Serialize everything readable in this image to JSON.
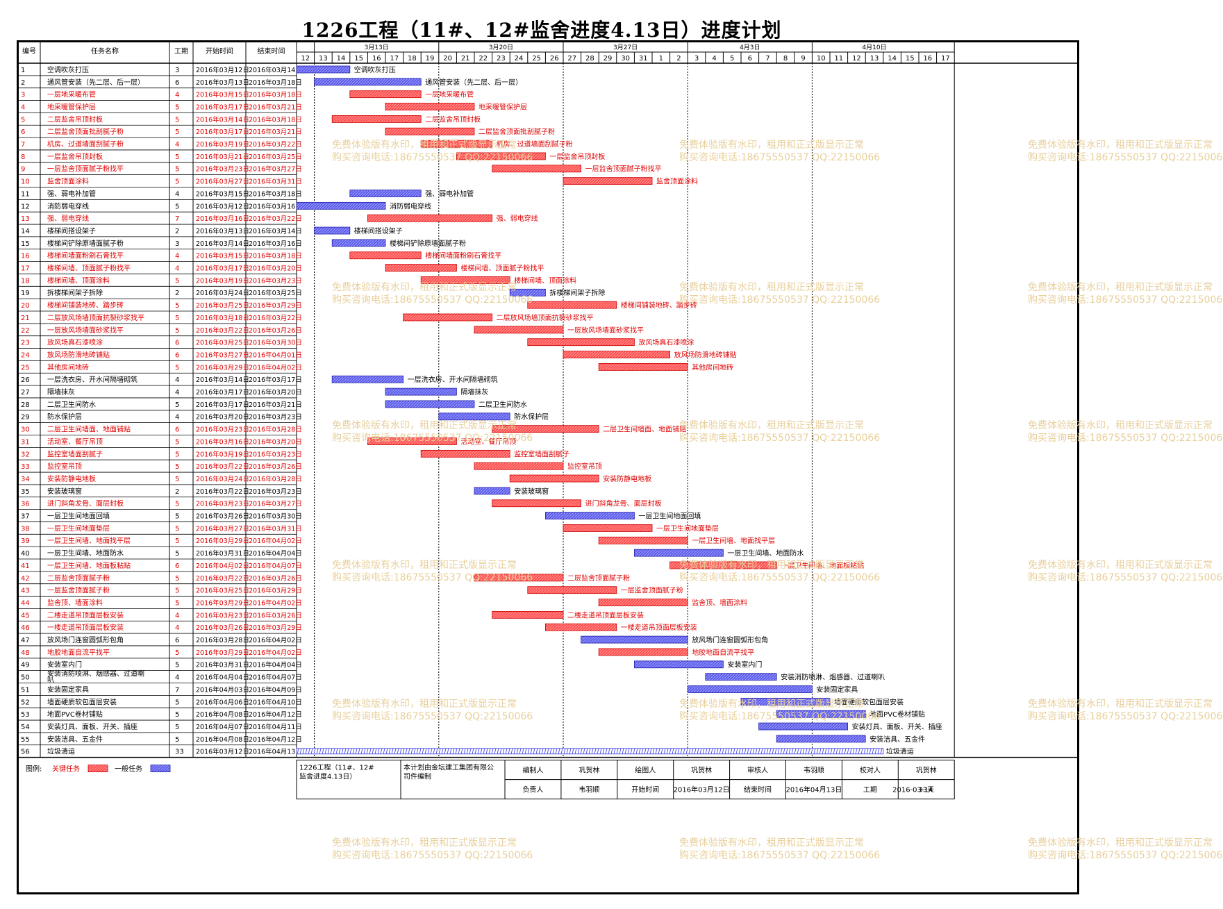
{
  "title": "1226工程（11#、12#监舍进度4.13日）进度计划",
  "headers": {
    "id": "编号",
    "name": "任务名称",
    "dur": "工期",
    "start": "开始时间",
    "end": "结束时间"
  },
  "weeks": [
    {
      "label": "3月13日",
      "first": 13,
      "last": 19
    },
    {
      "label": "3月20日",
      "first": 20,
      "last": 26
    },
    {
      "label": "3月27日",
      "first": 27,
      "last": 33
    },
    {
      "label": "4月3日",
      "first": 34,
      "last": 40
    },
    {
      "label": "4月10日",
      "first": 41,
      "last": 47
    }
  ],
  "days": [
    "12",
    "13",
    "14",
    "15",
    "16",
    "17",
    "18",
    "19",
    "20",
    "21",
    "22",
    "23",
    "24",
    "25",
    "26",
    "27",
    "28",
    "29",
    "30",
    "31",
    "1",
    "2",
    "3",
    "4",
    "5",
    "6",
    "7",
    "8",
    "9",
    "10",
    "11",
    "12",
    "13",
    "14",
    "15",
    "16",
    "17"
  ],
  "watermark": {
    "line1": "免费体验版有水印，租用和正式版显示正常",
    "line2": "购买咨询电话:18675550537 QQ:22150066"
  },
  "colors": {
    "critical": "#ff4d4d",
    "general": "#5a5aee",
    "critical_text": "#e00000",
    "grid": "#000000"
  },
  "chart_data": {
    "type": "gantt",
    "x_axis_start": "2016-03-12",
    "tasks": [
      {
        "id": "1",
        "name": "空调吹灰打压",
        "dur": "3",
        "start": "2016年03月12日",
        "end": "2016年03月14日",
        "s": 12,
        "e": 14,
        "critical": false
      },
      {
        "id": "2",
        "name": "通风管安装（先二层、后一层）",
        "dur": "6",
        "start": "2016年03月13日",
        "end": "2016年03月18日",
        "s": 13,
        "e": 18,
        "critical": false
      },
      {
        "id": "3",
        "name": "一层地采暖布管",
        "dur": "4",
        "start": "2016年03月15日",
        "end": "2016年03月18日",
        "s": 15,
        "e": 18,
        "critical": true
      },
      {
        "id": "4",
        "name": "地采暖管保护层",
        "dur": "5",
        "start": "2016年03月17日",
        "end": "2016年03月21日",
        "s": 17,
        "e": 21,
        "critical": true
      },
      {
        "id": "5",
        "name": "二层监舍吊顶封板",
        "dur": "5",
        "start": "2016年03月14日",
        "end": "2016年03月18日",
        "s": 14,
        "e": 18,
        "critical": true
      },
      {
        "id": "6",
        "name": "二层监舍顶面批刮腻子粉",
        "dur": "5",
        "start": "2016年03月17日",
        "end": "2016年03月21日",
        "s": 17,
        "e": 21,
        "critical": true
      },
      {
        "id": "7",
        "name": "机房、过道墙面刮腻子粉",
        "dur": "4",
        "start": "2016年03月19日",
        "end": "2016年03月22日",
        "s": 19,
        "e": 22,
        "critical": true
      },
      {
        "id": "8",
        "name": "一层监舍吊顶封板",
        "dur": "5",
        "start": "2016年03月21日",
        "end": "2016年03月25日",
        "s": 21,
        "e": 25,
        "critical": true
      },
      {
        "id": "9",
        "name": "一层监舍顶面腻子粉找平",
        "dur": "5",
        "start": "2016年03月23日",
        "end": "2016年03月27日",
        "s": 23,
        "e": 27,
        "critical": true
      },
      {
        "id": "10",
        "name": "监舍顶面涂料",
        "dur": "5",
        "start": "2016年03月27日",
        "end": "2016年03月31日",
        "s": 27,
        "e": 31,
        "critical": true
      },
      {
        "id": "11",
        "name": "强、弱电补加管",
        "dur": "4",
        "start": "2016年03月15日",
        "end": "2016年03月18日",
        "s": 15,
        "e": 18,
        "critical": false
      },
      {
        "id": "12",
        "name": "消防弱电穿线",
        "dur": "5",
        "start": "2016年03月12日",
        "end": "2016年03月16日",
        "s": 12,
        "e": 16,
        "critical": false
      },
      {
        "id": "13",
        "name": "强、弱电穿线",
        "dur": "7",
        "start": "2016年03月16日",
        "end": "2016年03月22日",
        "s": 16,
        "e": 22,
        "critical": true
      },
      {
        "id": "14",
        "name": "楼梯间搭设架子",
        "dur": "2",
        "start": "2016年03月13日",
        "end": "2016年03月14日",
        "s": 13,
        "e": 14,
        "critical": false
      },
      {
        "id": "15",
        "name": "楼梯间铲除原墙面腻子粉",
        "dur": "3",
        "start": "2016年03月14日",
        "end": "2016年03月16日",
        "s": 14,
        "e": 16,
        "critical": false
      },
      {
        "id": "16",
        "name": "楼梯间墙面粉刷石膏找平",
        "dur": "4",
        "start": "2016年03月15日",
        "end": "2016年03月18日",
        "s": 15,
        "e": 18,
        "critical": true
      },
      {
        "id": "17",
        "name": "楼梯间墙、顶面腻子粉找平",
        "dur": "4",
        "start": "2016年03月17日",
        "end": "2016年03月20日",
        "s": 17,
        "e": 20,
        "critical": true
      },
      {
        "id": "18",
        "name": "楼梯间墙、顶面涂料",
        "dur": "5",
        "start": "2016年03月19日",
        "end": "2016年03月23日",
        "s": 19,
        "e": 23,
        "critical": true
      },
      {
        "id": "19",
        "name": "拆楼梯间架子拆除",
        "dur": "2",
        "start": "2016年03月24日",
        "end": "2016年03月25日",
        "s": 24,
        "e": 25,
        "critical": false
      },
      {
        "id": "20",
        "name": "楼梯间铺装地砖、踏步砖",
        "dur": "5",
        "start": "2016年03月25日",
        "end": "2016年03月29日",
        "s": 25,
        "e": 29,
        "critical": true
      },
      {
        "id": "21",
        "name": "二层放风场墙顶面抗裂砂浆找平",
        "dur": "5",
        "start": "2016年03月18日",
        "end": "2016年03月22日",
        "s": 18,
        "e": 22,
        "critical": true
      },
      {
        "id": "22",
        "name": "一层放风场墙面砂浆找平",
        "dur": "5",
        "start": "2016年03月22日",
        "end": "2016年03月26日",
        "s": 22,
        "e": 26,
        "critical": true
      },
      {
        "id": "23",
        "name": "放风场真石漆喷涂",
        "dur": "6",
        "start": "2016年03月25日",
        "end": "2016年03月30日",
        "s": 25,
        "e": 30,
        "critical": true
      },
      {
        "id": "24",
        "name": "放风场防滑地砖铺贴",
        "dur": "6",
        "start": "2016年03月27日",
        "end": "2016年04月01日",
        "s": 27,
        "e": 32,
        "critical": true
      },
      {
        "id": "25",
        "name": "其他房间地砖",
        "dur": "5",
        "start": "2016年03月29日",
        "end": "2016年04月02日",
        "s": 29,
        "e": 33,
        "critical": true
      },
      {
        "id": "26",
        "name": "一层洗衣房、开水间隔墙砌筑",
        "dur": "4",
        "start": "2016年03月14日",
        "end": "2016年03月17日",
        "s": 14,
        "e": 17,
        "critical": false
      },
      {
        "id": "27",
        "name": "隔墙抹灰",
        "dur": "4",
        "start": "2016年03月17日",
        "end": "2016年03月20日",
        "s": 17,
        "e": 20,
        "critical": false
      },
      {
        "id": "28",
        "name": "二层卫生间防水",
        "dur": "5",
        "start": "2016年03月17日",
        "end": "2016年03月21日",
        "s": 17,
        "e": 21,
        "critical": false
      },
      {
        "id": "29",
        "name": "防水保护层",
        "dur": "4",
        "start": "2016年03月20日",
        "end": "2016年03月23日",
        "s": 20,
        "e": 23,
        "critical": false
      },
      {
        "id": "30",
        "name": "二层卫生间墙面、地面铺贴",
        "dur": "6",
        "start": "2016年03月23日",
        "end": "2016年03月28日",
        "s": 23,
        "e": 28,
        "critical": true
      },
      {
        "id": "31",
        "name": "活动室、餐厅吊顶",
        "dur": "5",
        "start": "2016年03月16日",
        "end": "2016年03月20日",
        "s": 16,
        "e": 20,
        "critical": true
      },
      {
        "id": "32",
        "name": "监控室墙面刮腻子",
        "dur": "5",
        "start": "2016年03月19日",
        "end": "2016年03月23日",
        "s": 19,
        "e": 23,
        "critical": true
      },
      {
        "id": "33",
        "name": "监控室吊顶",
        "dur": "5",
        "start": "2016年03月22日",
        "end": "2016年03月26日",
        "s": 22,
        "e": 26,
        "critical": true
      },
      {
        "id": "34",
        "name": "安装防静电地板",
        "dur": "5",
        "start": "2016年03月24日",
        "end": "2016年03月28日",
        "s": 24,
        "e": 28,
        "critical": true
      },
      {
        "id": "35",
        "name": "安装玻璃窗",
        "dur": "2",
        "start": "2016年03月22日",
        "end": "2016年03月23日",
        "s": 22,
        "e": 23,
        "critical": false
      },
      {
        "id": "36",
        "name": "进门斜角龙骨、面层封板",
        "dur": "5",
        "start": "2016年03月23日",
        "end": "2016年03月27日",
        "s": 23,
        "e": 27,
        "critical": true
      },
      {
        "id": "37",
        "name": "一层卫生间地面回填",
        "dur": "5",
        "start": "2016年03月26日",
        "end": "2016年03月30日",
        "s": 26,
        "e": 30,
        "critical": false
      },
      {
        "id": "38",
        "name": "一层卫生间地面垫层",
        "dur": "5",
        "start": "2016年03月27日",
        "end": "2016年03月31日",
        "s": 27,
        "e": 31,
        "critical": true
      },
      {
        "id": "39",
        "name": "一层卫生间墙、地面找平层",
        "dur": "5",
        "start": "2016年03月29日",
        "end": "2016年04月02日",
        "s": 29,
        "e": 33,
        "critical": true
      },
      {
        "id": "40",
        "name": "一层卫生间墙、地面防水",
        "dur": "5",
        "start": "2016年03月31日",
        "end": "2016年04月04日",
        "s": 31,
        "e": 35,
        "critical": false
      },
      {
        "id": "41",
        "name": "一层卫生间墙、地面板粘贴",
        "dur": "6",
        "start": "2016年04月02日",
        "end": "2016年04月07日",
        "s": 33,
        "e": 38,
        "critical": true
      },
      {
        "id": "42",
        "name": "二层监舍顶面腻子粉",
        "dur": "5",
        "start": "2016年03月22日",
        "end": "2016年03月26日",
        "s": 22,
        "e": 26,
        "critical": true
      },
      {
        "id": "43",
        "name": "一层监舍顶面腻子粉",
        "dur": "5",
        "start": "2016年03月25日",
        "end": "2016年03月29日",
        "s": 25,
        "e": 29,
        "critical": true
      },
      {
        "id": "44",
        "name": "监舍顶、墙面涂料",
        "dur": "5",
        "start": "2016年03月29日",
        "end": "2016年04月02日",
        "s": 29,
        "e": 33,
        "critical": true
      },
      {
        "id": "45",
        "name": "二楼走道吊顶面层板安装",
        "dur": "4",
        "start": "2016年03月23日",
        "end": "2016年03月26日",
        "s": 23,
        "e": 26,
        "critical": true
      },
      {
        "id": "46",
        "name": "一楼走道吊顶面层板安装",
        "dur": "4",
        "start": "2016年03月26日",
        "end": "2016年03月29日",
        "s": 26,
        "e": 29,
        "critical": true
      },
      {
        "id": "47",
        "name": "放风场门连窗圆弧形包角",
        "dur": "6",
        "start": "2016年03月28日",
        "end": "2016年04月02日",
        "s": 28,
        "e": 33,
        "critical": false
      },
      {
        "id": "48",
        "name": "地胶地面自流平找平",
        "dur": "5",
        "start": "2016年03月29日",
        "end": "2016年04月02日",
        "s": 29,
        "e": 33,
        "critical": true
      },
      {
        "id": "49",
        "name": "安装室内门",
        "dur": "5",
        "start": "2016年03月31日",
        "end": "2016年04月04日",
        "s": 31,
        "e": 35,
        "critical": false
      },
      {
        "id": "50",
        "name": "安装消防喷淋、烟感器、过道喇叭",
        "dur": "4",
        "start": "2016年04月04日",
        "end": "2016年04月07日",
        "s": 35,
        "e": 38,
        "critical": false
      },
      {
        "id": "51",
        "name": "安装固定家具",
        "dur": "7",
        "start": "2016年04月03日",
        "end": "2016年04月09日",
        "s": 34,
        "e": 40,
        "critical": false
      },
      {
        "id": "52",
        "name": "墙面硬质软包面层安装",
        "dur": "5",
        "start": "2016年04月06日",
        "end": "2016年04月10日",
        "s": 37,
        "e": 41,
        "critical": false
      },
      {
        "id": "53",
        "name": "地面PVC卷材铺贴",
        "dur": "5",
        "start": "2016年04月08日",
        "end": "2016年04月12日",
        "s": 39,
        "e": 43,
        "critical": false
      },
      {
        "id": "54",
        "name": "安装灯具、面板、开关、插座",
        "dur": "5",
        "start": "2016年04月07日",
        "end": "2016年04月11日",
        "s": 38,
        "e": 42,
        "critical": false
      },
      {
        "id": "55",
        "name": "安装洁具、五金件",
        "dur": "5",
        "start": "2016年04月08日",
        "end": "2016年04月12日",
        "s": 39,
        "e": 43,
        "critical": false
      },
      {
        "id": "56",
        "name": "垃圾清运",
        "dur": "33",
        "start": "2016年03月12日",
        "end": "2016年04月13日",
        "s": 12,
        "e": 44,
        "critical": false,
        "summary": true
      }
    ]
  },
  "legend": {
    "label": "图例:",
    "critical": "关键任务",
    "general": "一般任务"
  },
  "footer": {
    "project": "1226工程（11#、12#监舍进度4.13日）",
    "company": "本计划由金坛建工集团有限公司件编制",
    "row1": [
      [
        "编制人",
        "巩贺林"
      ],
      [
        "绘图人",
        "巩贺林"
      ],
      [
        "审核人",
        "韦羽顺"
      ],
      [
        "校对人",
        "巩贺林"
      ]
    ],
    "row2": [
      [
        "负责人",
        "韦羽顺"
      ],
      [
        "开始时间",
        "2016年03月12日"
      ],
      [
        "结束时间",
        "2016年04月13日"
      ],
      [
        "工期",
        "33天"
      ]
    ],
    "date": "2016-03-14"
  }
}
